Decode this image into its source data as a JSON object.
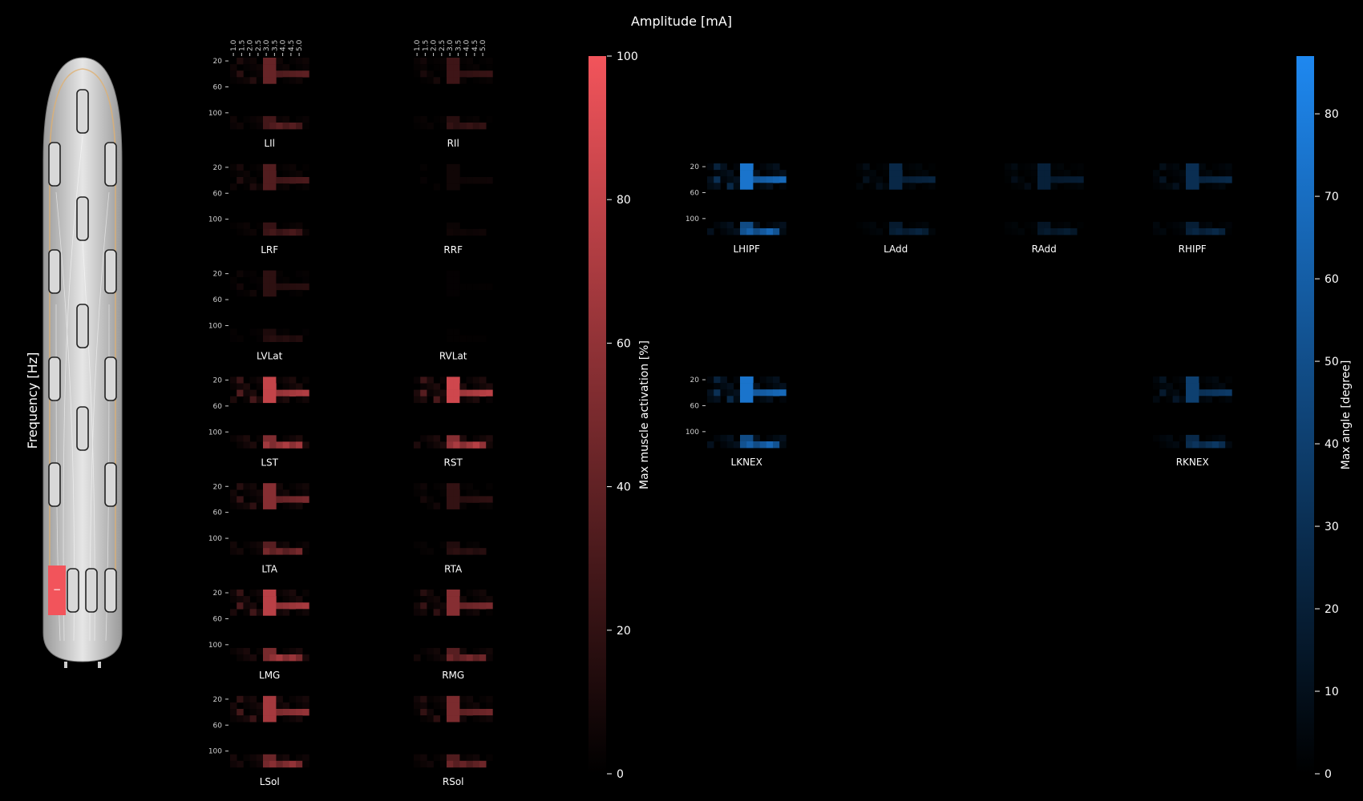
{
  "chart_data": {
    "type": "heatmap",
    "title": "Amplitude [mA]",
    "ylabel": "Frequency [Hz]",
    "amplitude_ticks": [
      "1.0",
      "1.5",
      "2.0",
      "2.5",
      "3.0",
      "3.5",
      "4.0",
      "4.5",
      "5.0"
    ],
    "frequency_ticks": [
      "20",
      "60",
      "100"
    ],
    "colors": {
      "background": "#000000",
      "muscle_max": "#f2545b",
      "angle_max": "#1e88f0",
      "implant_active": "#f2545b"
    },
    "muscle_colorbar": {
      "label": "Max muscle activation [%]",
      "range": [
        0,
        100
      ],
      "ticks": [
        "0",
        "20",
        "40",
        "60",
        "80",
        "100"
      ]
    },
    "angle_colorbar": {
      "label": "Max angle [degree]",
      "range": [
        0,
        87
      ],
      "ticks": [
        "0",
        "10",
        "20",
        "30",
        "40",
        "50",
        "60",
        "70",
        "80"
      ]
    },
    "muscle_panels": [
      {
        "name": "LIl",
        "level": 0.5
      },
      {
        "name": "RIl",
        "level": 0.3
      },
      {
        "name": "LRF",
        "level": 0.4
      },
      {
        "name": "RRF",
        "level": 0.08
      },
      {
        "name": "LVLat",
        "level": 0.22
      },
      {
        "name": "RVLat",
        "level": 0.02
      },
      {
        "name": "LST",
        "level": 0.95
      },
      {
        "name": "RST",
        "level": 1.0
      },
      {
        "name": "LTA",
        "level": 0.65
      },
      {
        "name": "RTA",
        "level": 0.25
      },
      {
        "name": "LMG",
        "level": 0.9
      },
      {
        "name": "RMG",
        "level": 0.65
      },
      {
        "name": "LSol",
        "level": 0.8
      },
      {
        "name": "RSol",
        "level": 0.6
      }
    ],
    "angle_panels": [
      {
        "name": "LHIPF",
        "level": 1.0
      },
      {
        "name": "LAdd",
        "level": 0.35
      },
      {
        "name": "RAdd",
        "level": 0.28
      },
      {
        "name": "RHIPF",
        "level": 0.4
      },
      {
        "name": "LKNEX",
        "level": 1.0
      },
      {
        "name": "RKNEX",
        "level": 0.55
      }
    ]
  }
}
